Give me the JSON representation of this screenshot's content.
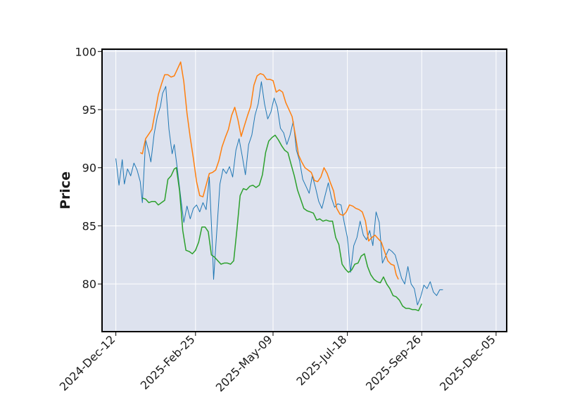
{
  "chart_data": {
    "type": "line",
    "title": "",
    "xlabel": "",
    "ylabel": "Price",
    "ylim": [
      75.9,
      100.2
    ],
    "yticks": [
      80,
      85,
      90,
      95,
      100
    ],
    "xlim": [
      "2024-Nov-29",
      "2025-Dec-15"
    ],
    "xticks": [
      "2024-Dec-12",
      "2025-Feb-25",
      "2025-May-09",
      "2025-Jul-18",
      "2025-Sep-26",
      "2025-Dec-05"
    ],
    "grid": true,
    "legend": "none",
    "background": "#dde2ee",
    "series": [
      {
        "color": "#1f77b4",
        "points": [
          [
            "2024-Dec-12",
            90.8
          ],
          [
            "2024-Dec-15",
            88.5
          ],
          [
            "2024-Dec-18",
            90.7
          ],
          [
            "2024-Dec-20",
            88.6
          ],
          [
            "2024-Dec-23",
            89.9
          ],
          [
            "2024-Dec-26",
            89.3
          ],
          [
            "2024-Dec-29",
            90.4
          ],
          [
            "2025-Jan-01",
            89.8
          ],
          [
            "2025-Jan-04",
            88.8
          ],
          [
            "2025-Jan-06",
            87.0
          ],
          [
            "2025-Jan-09",
            92.4
          ],
          [
            "2025-Jan-12",
            91.4
          ],
          [
            "2025-Jan-14",
            90.5
          ],
          [
            "2025-Jan-17",
            92.9
          ],
          [
            "2025-Jan-20",
            94.4
          ],
          [
            "2025-Jan-23",
            95.3
          ],
          [
            "2025-Jan-25",
            96.4
          ],
          [
            "2025-Jan-28",
            97.0
          ],
          [
            "2025-Jan-31",
            93.3
          ],
          [
            "2025-Feb-03",
            91.2
          ],
          [
            "2025-Feb-05",
            92.0
          ],
          [
            "2025-Feb-08",
            89.8
          ],
          [
            "2025-Feb-11",
            87.5
          ],
          [
            "2025-Feb-14",
            85.3
          ],
          [
            "2025-Feb-17",
            86.7
          ],
          [
            "2025-Feb-20",
            85.6
          ],
          [
            "2025-Feb-23",
            86.5
          ],
          [
            "2025-Feb-26",
            86.8
          ],
          [
            "2025-Mar-01",
            86.2
          ],
          [
            "2025-Mar-04",
            87.0
          ],
          [
            "2025-Mar-07",
            86.4
          ],
          [
            "2025-Mar-10",
            89.2
          ],
          [
            "2025-Mar-13",
            83.0
          ],
          [
            "2025-Mar-14",
            80.4
          ],
          [
            "2025-Mar-17",
            84.5
          ],
          [
            "2025-Mar-20",
            88.6
          ],
          [
            "2025-Mar-23",
            89.9
          ],
          [
            "2025-Mar-26",
            89.5
          ],
          [
            "2025-Mar-29",
            90.1
          ],
          [
            "2025-Apr-01",
            89.2
          ],
          [
            "2025-Apr-04",
            91.5
          ],
          [
            "2025-Apr-07",
            92.5
          ],
          [
            "2025-Apr-10",
            91.0
          ],
          [
            "2025-Apr-13",
            89.4
          ],
          [
            "2025-Apr-16",
            92.0
          ],
          [
            "2025-Apr-19",
            92.8
          ],
          [
            "2025-Apr-22",
            94.5
          ],
          [
            "2025-Apr-25",
            95.5
          ],
          [
            "2025-Apr-28",
            97.4
          ],
          [
            "2025-May-01",
            95.5
          ],
          [
            "2025-May-04",
            94.2
          ],
          [
            "2025-May-07",
            94.8
          ],
          [
            "2025-May-10",
            96.0
          ],
          [
            "2025-May-13",
            95.2
          ],
          [
            "2025-May-16",
            93.4
          ],
          [
            "2025-May-19",
            93.0
          ],
          [
            "2025-May-22",
            92.0
          ],
          [
            "2025-May-25",
            92.8
          ],
          [
            "2025-May-28",
            94.0
          ],
          [
            "2025-May-31",
            91.5
          ],
          [
            "2025-Jun-03",
            90.6
          ],
          [
            "2025-Jun-06",
            89.0
          ],
          [
            "2025-Jun-09",
            88.4
          ],
          [
            "2025-Jun-12",
            87.8
          ],
          [
            "2025-Jun-15",
            89.3
          ],
          [
            "2025-Jun-18",
            88.3
          ],
          [
            "2025-Jun-21",
            87.1
          ],
          [
            "2025-Jun-24",
            86.5
          ],
          [
            "2025-Jun-27",
            87.6
          ],
          [
            "2025-Jun-30",
            88.7
          ],
          [
            "2025-Jul-03",
            87.4
          ],
          [
            "2025-Jul-06",
            86.6
          ],
          [
            "2025-Jul-09",
            86.9
          ],
          [
            "2025-Jul-12",
            86.8
          ],
          [
            "2025-Jul-15",
            85.3
          ],
          [
            "2025-Jul-18",
            84.0
          ],
          [
            "2025-Jul-21",
            81.0
          ],
          [
            "2025-Jul-24",
            83.3
          ],
          [
            "2025-Jul-27",
            84.0
          ],
          [
            "2025-Jul-30",
            85.4
          ],
          [
            "2025-Aug-02",
            84.2
          ],
          [
            "2025-Aug-05",
            83.8
          ],
          [
            "2025-Aug-08",
            84.6
          ],
          [
            "2025-Aug-11",
            83.3
          ],
          [
            "2025-Aug-14",
            86.2
          ],
          [
            "2025-Aug-17",
            85.3
          ],
          [
            "2025-Aug-20",
            81.8
          ],
          [
            "2025-Aug-23",
            82.4
          ],
          [
            "2025-Aug-26",
            83.0
          ],
          [
            "2025-Aug-29",
            82.8
          ],
          [
            "2025-Sep-01",
            82.5
          ],
          [
            "2025-Sep-04",
            81.5
          ],
          [
            "2025-Sep-07",
            80.5
          ],
          [
            "2025-Sep-10",
            80.0
          ],
          [
            "2025-Sep-13",
            81.5
          ],
          [
            "2025-Sep-16",
            80.0
          ],
          [
            "2025-Sep-19",
            79.6
          ],
          [
            "2025-Sep-22",
            78.2
          ],
          [
            "2025-Sep-25",
            78.9
          ],
          [
            "2025-Sep-28",
            79.9
          ],
          [
            "2025-Oct-01",
            79.6
          ],
          [
            "2025-Oct-04",
            80.2
          ],
          [
            "2025-Oct-07",
            79.3
          ],
          [
            "2025-Oct-10",
            79.0
          ],
          [
            "2025-Oct-13",
            79.5
          ],
          [
            "2025-Oct-16",
            79.5
          ]
        ]
      },
      {
        "color": "#ff7f0e",
        "points": [
          [
            "2025-Jan-04",
            91.3
          ],
          [
            "2025-Jan-06",
            91.2
          ],
          [
            "2025-Jan-09",
            92.5
          ],
          [
            "2025-Jan-12",
            92.9
          ],
          [
            "2025-Jan-15",
            93.3
          ],
          [
            "2025-Jan-18",
            94.8
          ],
          [
            "2025-Jan-21",
            96.3
          ],
          [
            "2025-Jan-24",
            97.2
          ],
          [
            "2025-Jan-27",
            98.0
          ],
          [
            "2025-Jan-30",
            98.0
          ],
          [
            "2025-Feb-02",
            97.8
          ],
          [
            "2025-Feb-05",
            97.9
          ],
          [
            "2025-Feb-08",
            98.5
          ],
          [
            "2025-Feb-11",
            99.1
          ],
          [
            "2025-Feb-14",
            97.4
          ],
          [
            "2025-Feb-17",
            94.7
          ],
          [
            "2025-Feb-20",
            92.6
          ],
          [
            "2025-Feb-23",
            90.8
          ],
          [
            "2025-Feb-26",
            88.8
          ],
          [
            "2025-Mar-01",
            87.6
          ],
          [
            "2025-Mar-04",
            87.5
          ],
          [
            "2025-Mar-07",
            88.5
          ],
          [
            "2025-Mar-10",
            89.5
          ],
          [
            "2025-Mar-13",
            89.6
          ],
          [
            "2025-Mar-16",
            89.8
          ],
          [
            "2025-Mar-19",
            90.6
          ],
          [
            "2025-Mar-22",
            91.8
          ],
          [
            "2025-Mar-25",
            92.6
          ],
          [
            "2025-Mar-28",
            93.3
          ],
          [
            "2025-Mar-31",
            94.5
          ],
          [
            "2025-Apr-03",
            95.2
          ],
          [
            "2025-Apr-06",
            94.1
          ],
          [
            "2025-Apr-09",
            92.7
          ],
          [
            "2025-Apr-12",
            93.6
          ],
          [
            "2025-Apr-15",
            94.5
          ],
          [
            "2025-Apr-18",
            95.3
          ],
          [
            "2025-Apr-21",
            97.1
          ],
          [
            "2025-Apr-24",
            97.9
          ],
          [
            "2025-Apr-27",
            98.1
          ],
          [
            "2025-Apr-30",
            98.0
          ],
          [
            "2025-May-03",
            97.6
          ],
          [
            "2025-May-06",
            97.6
          ],
          [
            "2025-May-09",
            97.5
          ],
          [
            "2025-May-12",
            96.5
          ],
          [
            "2025-May-15",
            96.7
          ],
          [
            "2025-May-18",
            96.5
          ],
          [
            "2025-May-21",
            95.6
          ],
          [
            "2025-May-24",
            95.0
          ],
          [
            "2025-May-27",
            94.4
          ],
          [
            "2025-May-30",
            92.8
          ],
          [
            "2025-Jun-02",
            91.1
          ],
          [
            "2025-Jun-05",
            90.5
          ],
          [
            "2025-Jun-08",
            90.0
          ],
          [
            "2025-Jun-11",
            89.8
          ],
          [
            "2025-Jun-14",
            89.6
          ],
          [
            "2025-Jun-17",
            88.9
          ],
          [
            "2025-Jun-20",
            88.8
          ],
          [
            "2025-Jun-23",
            89.2
          ],
          [
            "2025-Jun-26",
            90.0
          ],
          [
            "2025-Jun-29",
            89.5
          ],
          [
            "2025-Jul-02",
            88.7
          ],
          [
            "2025-Jul-05",
            88.0
          ],
          [
            "2025-Jul-08",
            86.5
          ],
          [
            "2025-Jul-11",
            86.0
          ],
          [
            "2025-Jul-14",
            85.9
          ],
          [
            "2025-Jul-17",
            86.2
          ],
          [
            "2025-Jul-20",
            86.8
          ],
          [
            "2025-Jul-23",
            86.7
          ],
          [
            "2025-Jul-26",
            86.5
          ],
          [
            "2025-Jul-29",
            86.4
          ],
          [
            "2025-Aug-01",
            86.2
          ],
          [
            "2025-Aug-04",
            85.4
          ],
          [
            "2025-Aug-07",
            83.7
          ],
          [
            "2025-Aug-10",
            84.0
          ],
          [
            "2025-Aug-13",
            84.2
          ],
          [
            "2025-Aug-16",
            83.9
          ],
          [
            "2025-Aug-19",
            83.6
          ],
          [
            "2025-Aug-22",
            82.8
          ],
          [
            "2025-Aug-25",
            82.0
          ],
          [
            "2025-Aug-28",
            81.7
          ],
          [
            "2025-Aug-31",
            81.6
          ],
          [
            "2025-Sep-02",
            80.8
          ],
          [
            "2025-Sep-04",
            80.4
          ]
        ]
      },
      {
        "color": "#2ca02c",
        "points": [
          [
            "2025-Jan-06",
            87.4
          ],
          [
            "2025-Jan-09",
            87.3
          ],
          [
            "2025-Jan-12",
            87.0
          ],
          [
            "2025-Jan-15",
            87.1
          ],
          [
            "2025-Jan-18",
            87.1
          ],
          [
            "2025-Jan-21",
            86.8
          ],
          [
            "2025-Jan-24",
            87.0
          ],
          [
            "2025-Jan-27",
            87.2
          ],
          [
            "2025-Jan-30",
            89.0
          ],
          [
            "2025-Feb-02",
            89.3
          ],
          [
            "2025-Feb-05",
            89.9
          ],
          [
            "2025-Feb-07",
            90.0
          ],
          [
            "2025-Feb-10",
            88.0
          ],
          [
            "2025-Feb-13",
            84.6
          ],
          [
            "2025-Feb-16",
            82.9
          ],
          [
            "2025-Feb-19",
            82.8
          ],
          [
            "2025-Feb-22",
            82.6
          ],
          [
            "2025-Feb-25",
            82.9
          ],
          [
            "2025-Feb-28",
            83.6
          ],
          [
            "2025-Mar-03",
            84.9
          ],
          [
            "2025-Mar-06",
            84.9
          ],
          [
            "2025-Mar-09",
            84.5
          ],
          [
            "2025-Mar-12",
            82.5
          ],
          [
            "2025-Mar-15",
            82.3
          ],
          [
            "2025-Mar-18",
            82.0
          ],
          [
            "2025-Mar-21",
            81.7
          ],
          [
            "2025-Mar-24",
            81.8
          ],
          [
            "2025-Mar-27",
            81.8
          ],
          [
            "2025-Mar-30",
            81.7
          ],
          [
            "2025-Apr-02",
            82.0
          ],
          [
            "2025-Apr-05",
            84.7
          ],
          [
            "2025-Apr-08",
            87.6
          ],
          [
            "2025-Apr-11",
            88.2
          ],
          [
            "2025-Apr-14",
            88.1
          ],
          [
            "2025-Apr-17",
            88.4
          ],
          [
            "2025-Apr-20",
            88.5
          ],
          [
            "2025-Apr-23",
            88.3
          ],
          [
            "2025-Apr-26",
            88.5
          ],
          [
            "2025-Apr-29",
            89.4
          ],
          [
            "2025-May-02",
            91.3
          ],
          [
            "2025-May-05",
            92.3
          ],
          [
            "2025-May-08",
            92.6
          ],
          [
            "2025-May-11",
            92.8
          ],
          [
            "2025-May-14",
            92.4
          ],
          [
            "2025-May-17",
            91.9
          ],
          [
            "2025-May-20",
            91.5
          ],
          [
            "2025-May-23",
            91.3
          ],
          [
            "2025-May-26",
            90.3
          ],
          [
            "2025-May-29",
            89.3
          ],
          [
            "2025-Jun-01",
            88.1
          ],
          [
            "2025-Jun-04",
            87.3
          ],
          [
            "2025-Jun-07",
            86.5
          ],
          [
            "2025-Jun-10",
            86.3
          ],
          [
            "2025-Jun-13",
            86.2
          ],
          [
            "2025-Jun-16",
            86.1
          ],
          [
            "2025-Jun-19",
            85.5
          ],
          [
            "2025-Jun-22",
            85.6
          ],
          [
            "2025-Jun-25",
            85.4
          ],
          [
            "2025-Jun-28",
            85.5
          ],
          [
            "2025-Jul-01",
            85.4
          ],
          [
            "2025-Jul-04",
            85.4
          ],
          [
            "2025-Jul-07",
            84.0
          ],
          [
            "2025-Jul-10",
            83.4
          ],
          [
            "2025-Jul-13",
            81.7
          ],
          [
            "2025-Jul-16",
            81.3
          ],
          [
            "2025-Jul-19",
            81.0
          ],
          [
            "2025-Jul-22",
            81.2
          ],
          [
            "2025-Jul-25",
            81.7
          ],
          [
            "2025-Jul-28",
            81.8
          ],
          [
            "2025-Jul-31",
            82.4
          ],
          [
            "2025-Aug-03",
            82.6
          ],
          [
            "2025-Aug-06",
            81.5
          ],
          [
            "2025-Aug-09",
            80.8
          ],
          [
            "2025-Aug-12",
            80.4
          ],
          [
            "2025-Aug-15",
            80.2
          ],
          [
            "2025-Aug-18",
            80.1
          ],
          [
            "2025-Aug-21",
            80.6
          ],
          [
            "2025-Aug-24",
            80.0
          ],
          [
            "2025-Aug-27",
            79.6
          ],
          [
            "2025-Aug-30",
            79.0
          ],
          [
            "2025-Sep-02",
            78.9
          ],
          [
            "2025-Sep-05",
            78.6
          ],
          [
            "2025-Sep-08",
            78.1
          ],
          [
            "2025-Sep-11",
            77.9
          ],
          [
            "2025-Sep-14",
            77.9
          ],
          [
            "2025-Sep-17",
            77.8
          ],
          [
            "2025-Sep-20",
            77.8
          ],
          [
            "2025-Sep-23",
            77.7
          ],
          [
            "2025-Sep-26",
            78.3
          ]
        ]
      }
    ]
  }
}
